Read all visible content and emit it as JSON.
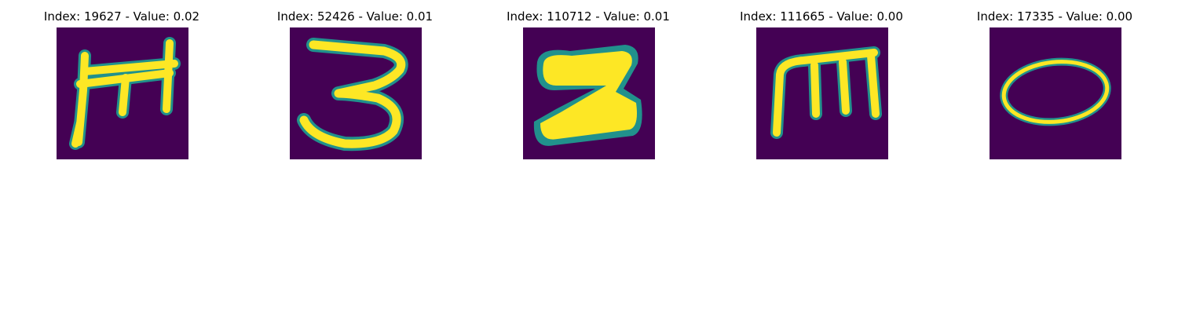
{
  "colors": {
    "background": "#440154",
    "stroke_core": "#fde725",
    "stroke_edge": "#21918c",
    "stroke_mid": "#7ad151"
  },
  "panels": [
    {
      "title": "Index: 19627 - Value: 0.02",
      "glyph": "m-shape"
    },
    {
      "title": "Index: 52426 - Value: 0.01",
      "glyph": "three-shape"
    },
    {
      "title": "Index: 110712 - Value: 0.01",
      "glyph": "z-shape"
    },
    {
      "title": "Index: 111665 - Value: 0.00",
      "glyph": "m-shape"
    },
    {
      "title": "Index: 17335 - Value: 0.00",
      "glyph": "o-shape"
    }
  ]
}
